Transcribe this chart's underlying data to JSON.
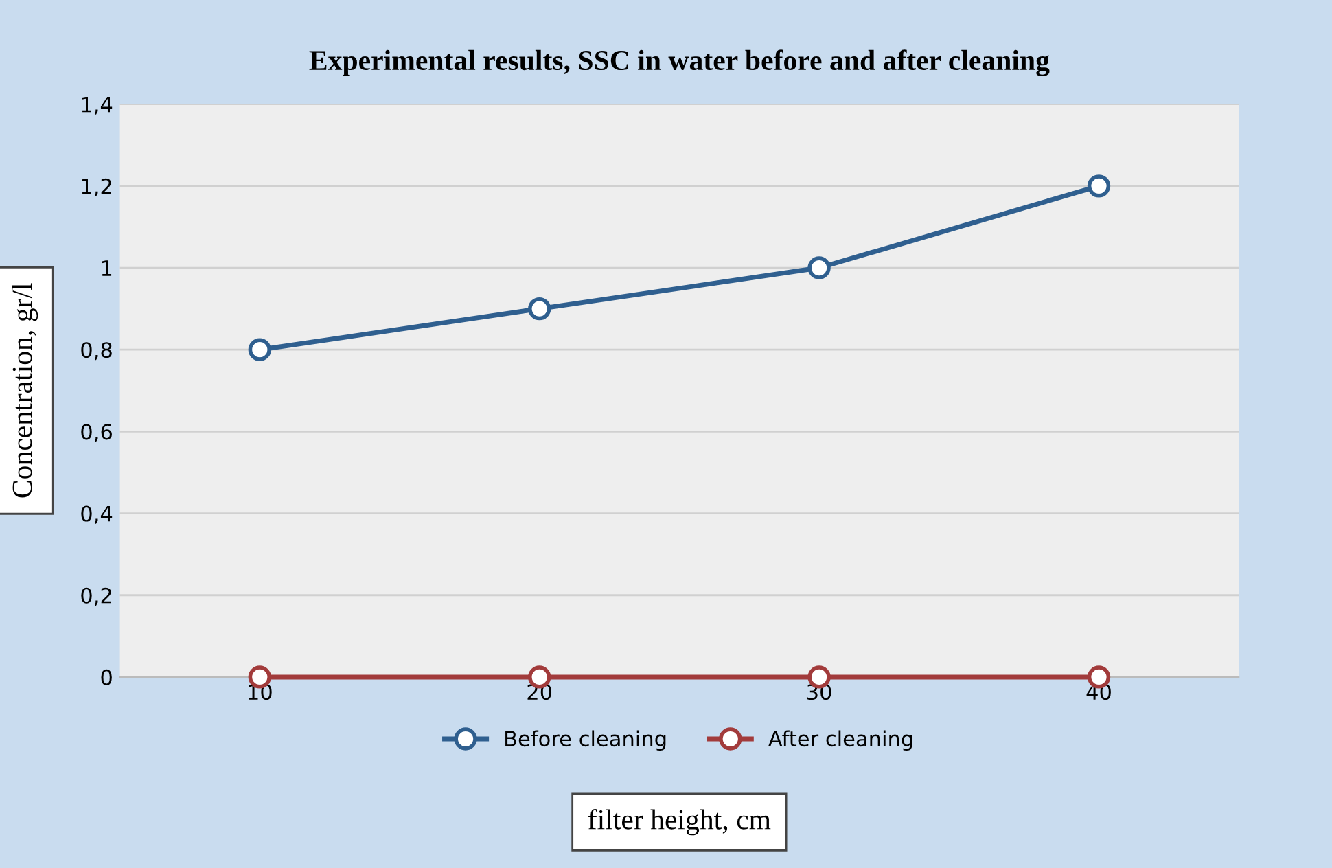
{
  "chart_data": {
    "type": "line",
    "title": "Experimental results, SSC in water before and after cleaning",
    "xlabel": "filter height, cm",
    "ylabel": "Concentration, gr/l",
    "categories": [
      "10",
      "20",
      "30",
      "40"
    ],
    "series": [
      {
        "name": "Before cleaning",
        "color": "#2f5f8f",
        "values": [
          0.8,
          0.9,
          1.0,
          1.2
        ]
      },
      {
        "name": "After cleaning",
        "color": "#a23b3b",
        "values": [
          0,
          0,
          0,
          0
        ]
      }
    ],
    "ylim": [
      0,
      1.4
    ],
    "yticks": [
      0,
      {
        "value": 0.2,
        "label": "0,2"
      },
      {
        "value": 0.4,
        "label": "0,4"
      },
      {
        "value": 0.6,
        "label": "0,6"
      },
      {
        "value": 0.8,
        "label": "0,8"
      },
      1,
      {
        "value": 1.2,
        "label": "1,2"
      },
      {
        "value": 1.4,
        "label": "1,4"
      }
    ],
    "grid": "y",
    "legend": "bottom",
    "marker": "circle",
    "line_style": "solid"
  }
}
